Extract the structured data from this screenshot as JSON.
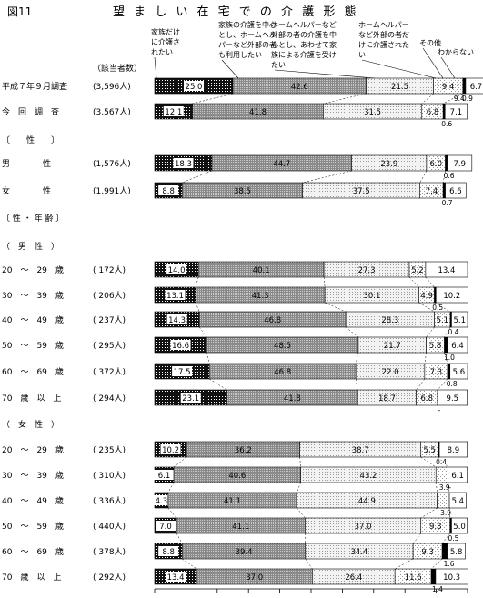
{
  "figure_label": "図11",
  "title": "望 ま し い 在 宅 で の 介 護 形 態",
  "count_header": "（該当者数）",
  "legend": [
    {
      "label": "家族だけに介護されたい",
      "lines": [
        "家族だけ",
        "に介護さ",
        "れたい"
      ]
    },
    {
      "label": "家族の介護を中心とし、ホームヘルパーなど外部の者も利用したい",
      "lines": [
        "家族の介護を中心",
        "とし、ホームヘル",
        "パーなど外部の者",
        "も利用したい"
      ]
    },
    {
      "label": "ホームヘルパーなど外部の者の介護を中心とし、あわせて家族による介護を受けたい",
      "lines": [
        "ホームヘルパーなど",
        "外部の者の介護を中",
        "心とし、あわせて家",
        "族による介護を受け",
        "たい"
      ]
    },
    {
      "label": "ホームヘルパーなど外部の者だけに介護されたい",
      "lines": [
        "ホームヘルパー",
        "など外部の者だ",
        "けに介護された",
        "い"
      ]
    },
    {
      "label": "その他",
      "lines": [
        "その他"
      ]
    },
    {
      "label": "わからない",
      "lines": [
        "わからない"
      ]
    }
  ],
  "colors": {
    "family": "#111111",
    "family_main": "#9a9a9a",
    "external_main": "#d9d9d9",
    "external_only": "#eeeeee",
    "other": "#000000",
    "unknown": "#ffffff"
  },
  "chart_data": {
    "type": "bar",
    "stacked": true,
    "orientation": "horizontal",
    "xlim": [
      0,
      100
    ],
    "series_names": [
      "家族だけに介護されたい",
      "家族の介護を中心とし、ホームヘルパーなど外部の者も利用したい",
      "ホームヘルパーなど外部の者の介護を中心とし、あわせて家族による介護を受けたい",
      "ホームヘルパーなど外部の者だけに介護されたい",
      "その他",
      "わからない"
    ],
    "rows": [
      {
        "label": "平成７年９月調査",
        "n": "(3,596人)",
        "values": [
          25.0,
          42.6,
          21.5,
          9.4,
          0.9,
          6.7
        ],
        "small": [
          null,
          null,
          null,
          "9.4",
          "0.9",
          null
        ]
      },
      {
        "label": "今　回　調　査",
        "n": "(3,567人)",
        "values": [
          12.1,
          41.8,
          31.5,
          6.8,
          0.6,
          7.1
        ],
        "small": [
          null,
          null,
          null,
          null,
          "0.6",
          null
        ]
      },
      {
        "header": "〔　　性　　〕"
      },
      {
        "label": "男　　　　性",
        "n": "(1,576人)",
        "values": [
          18.3,
          44.7,
          23.9,
          6.0,
          0.6,
          7.9
        ],
        "small": [
          null,
          null,
          null,
          null,
          "0.6",
          null
        ]
      },
      {
        "label": "女　　　　性",
        "n": "(1,991人)",
        "values": [
          8.8,
          38.5,
          37.5,
          7.4,
          0.7,
          6.6
        ],
        "small": [
          null,
          null,
          null,
          null,
          "0.7",
          null
        ]
      },
      {
        "header": "〔 性 ・ 年 齢 〕"
      },
      {
        "header": "（　男　性　）"
      },
      {
        "label": "20　～　29　歳",
        "n": "( 172人)",
        "values": [
          14.0,
          40.1,
          27.3,
          5.2,
          0.0,
          13.4
        ],
        "small": [
          null,
          null,
          null,
          null,
          null,
          null
        ]
      },
      {
        "label": "30　～　39　歳",
        "n": "( 206人)",
        "values": [
          13.1,
          41.3,
          30.1,
          4.9,
          0.5,
          10.2
        ],
        "small": [
          null,
          null,
          null,
          null,
          "0.5",
          null
        ]
      },
      {
        "label": "40　～　49　歳",
        "n": "( 237人)",
        "values": [
          14.3,
          46.8,
          28.3,
          5.1,
          0.4,
          5.1
        ],
        "small": [
          null,
          null,
          null,
          null,
          "0.4",
          null
        ]
      },
      {
        "label": "50　～　59　歳",
        "n": "( 295人)",
        "values": [
          16.6,
          48.5,
          21.7,
          5.8,
          1.0,
          6.4
        ],
        "small": [
          null,
          null,
          null,
          null,
          "1.0",
          null
        ]
      },
      {
        "label": "60　～　69　歳",
        "n": "( 372人)",
        "values": [
          17.5,
          46.8,
          22.0,
          7.3,
          0.8,
          5.6
        ],
        "small": [
          null,
          null,
          null,
          null,
          "0.8",
          null
        ]
      },
      {
        "label": "70　歳　以　上",
        "n": "( 294人)",
        "values": [
          23.1,
          41.8,
          18.7,
          6.8,
          0.0,
          9.5
        ],
        "small": [
          null,
          null,
          null,
          null,
          "-",
          null
        ]
      },
      {
        "header": "（　女　性　）"
      },
      {
        "label": "20　～　29　歳",
        "n": "( 235人)",
        "values": [
          10.2,
          36.2,
          38.7,
          5.5,
          0.4,
          8.9
        ],
        "small": [
          null,
          null,
          null,
          null,
          "0.4",
          null
        ]
      },
      {
        "label": "30　～　39　歳",
        "n": "( 310人)",
        "values": [
          6.1,
          40.6,
          43.2,
          3.9,
          0.0,
          6.1
        ],
        "small": [
          null,
          null,
          null,
          "3.9",
          "-",
          null
        ]
      },
      {
        "label": "40　～　49　歳",
        "n": "( 336人)",
        "values": [
          4.3,
          41.1,
          44.9,
          3.9,
          0.0,
          5.4
        ],
        "small": [
          null,
          null,
          null,
          "3.9",
          "-",
          null
        ]
      },
      {
        "label": "50　～　59　歳",
        "n": "( 440人)",
        "values": [
          7.0,
          41.1,
          37.0,
          9.3,
          0.5,
          5.0
        ],
        "small": [
          null,
          null,
          null,
          null,
          "0.5",
          null
        ]
      },
      {
        "label": "60　～　69　歳",
        "n": "( 378人)",
        "values": [
          8.8,
          39.4,
          34.4,
          9.3,
          1.6,
          5.8
        ],
        "small": [
          null,
          null,
          null,
          null,
          "1.6",
          null
        ]
      },
      {
        "label": "70　歳　以　上",
        "n": "( 292人)",
        "values": [
          13.4,
          37.0,
          26.4,
          11.6,
          1.4,
          10.3
        ],
        "small": [
          null,
          null,
          null,
          null,
          "1.4",
          null
        ]
      }
    ]
  }
}
